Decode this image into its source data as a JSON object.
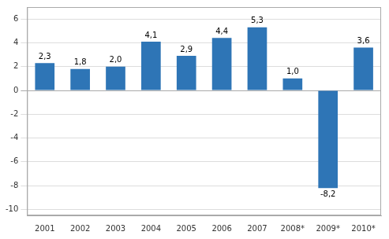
{
  "chart_data": {
    "type": "bar",
    "categories": [
      "2001",
      "2002",
      "2003",
      "2004",
      "2005",
      "2006",
      "2007",
      "2008*",
      "2009*",
      "2010*"
    ],
    "values": [
      2.3,
      1.8,
      2.0,
      4.1,
      2.9,
      4.4,
      5.3,
      1.0,
      -8.2,
      3.6
    ],
    "value_labels": [
      "2,3",
      "1,8",
      "2,0",
      "4,1",
      "2,9",
      "4,4",
      "5,3",
      "1,0",
      "-8,2",
      "3,6"
    ],
    "data_labels": true,
    "color": "#2E75B6",
    "ylim": [
      -10.5,
      7.0
    ],
    "yticks": [
      -10,
      -8,
      -6,
      -4,
      -2,
      0,
      2,
      4,
      6
    ],
    "grid": true
  }
}
